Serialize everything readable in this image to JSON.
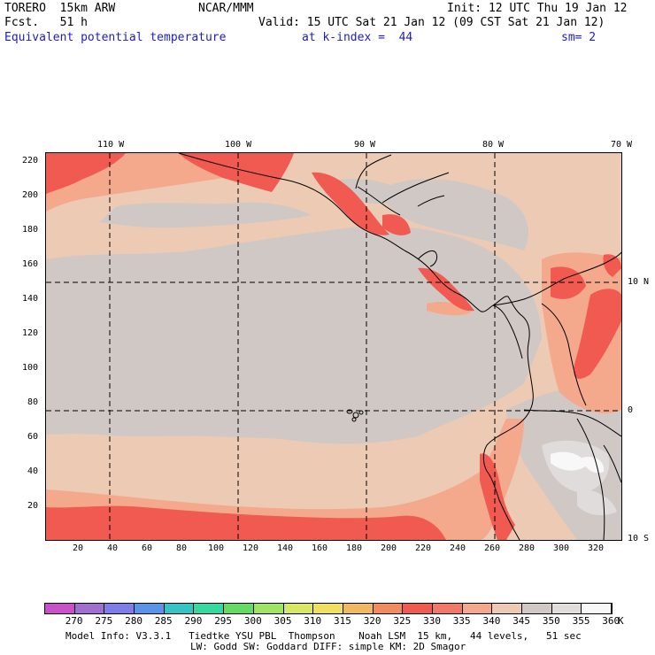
{
  "header": {
    "model": "TORERO  15km ARW",
    "center": "NCAR/MMM",
    "init": "Init: 12 UTC Thu 19 Jan 12",
    "fcst": "Fcst.   51 h",
    "valid": "Valid: 15 UTC Sat 21 Jan 12 (09 CST Sat 21 Jan 12)",
    "field": "Equivalent potential temperature",
    "level": "at k-index =  44",
    "smooth": "sm= 2"
  },
  "map": {
    "lon_labels": [
      "110 W",
      "100 W",
      "90 W",
      "80 W",
      "70 W"
    ],
    "lat_labels": [
      "10 N",
      "0",
      "10 S"
    ],
    "y_ticks": [
      "220",
      "200",
      "180",
      "160",
      "140",
      "120",
      "100",
      "80",
      "60",
      "40",
      "20"
    ],
    "x_ticks": [
      "20",
      "40",
      "60",
      "80",
      "100",
      "120",
      "140",
      "160",
      "180",
      "200",
      "220",
      "240",
      "260",
      "280",
      "300",
      "320"
    ]
  },
  "colorbar": {
    "unit": "K",
    "labels": [
      "270",
      "275",
      "280",
      "285",
      "290",
      "295",
      "300",
      "305",
      "310",
      "315",
      "320",
      "325",
      "330",
      "335",
      "340",
      "345",
      "350",
      "355",
      "360"
    ],
    "colors": [
      "#c850c8",
      "#a070d0",
      "#7e7ee8",
      "#5a94e8",
      "#34c4c4",
      "#34d8a0",
      "#64dc64",
      "#a0e464",
      "#d8e864",
      "#f0e060",
      "#f0b860",
      "#f08c60",
      "#f05a50",
      "#f07868",
      "#f4a88c",
      "#eccab4",
      "#d0c8c4",
      "#e0dcdc",
      "#f8f8f8"
    ]
  },
  "footer": {
    "line1": "Model Info: V3.3.1   Tiedtke YSU PBL  Thompson    Noah LSM  15 km,   44 levels,   51 sec",
    "line2": "LW: Godd SW: Goddard DIFF: simple KM: 2D Smagor"
  }
}
